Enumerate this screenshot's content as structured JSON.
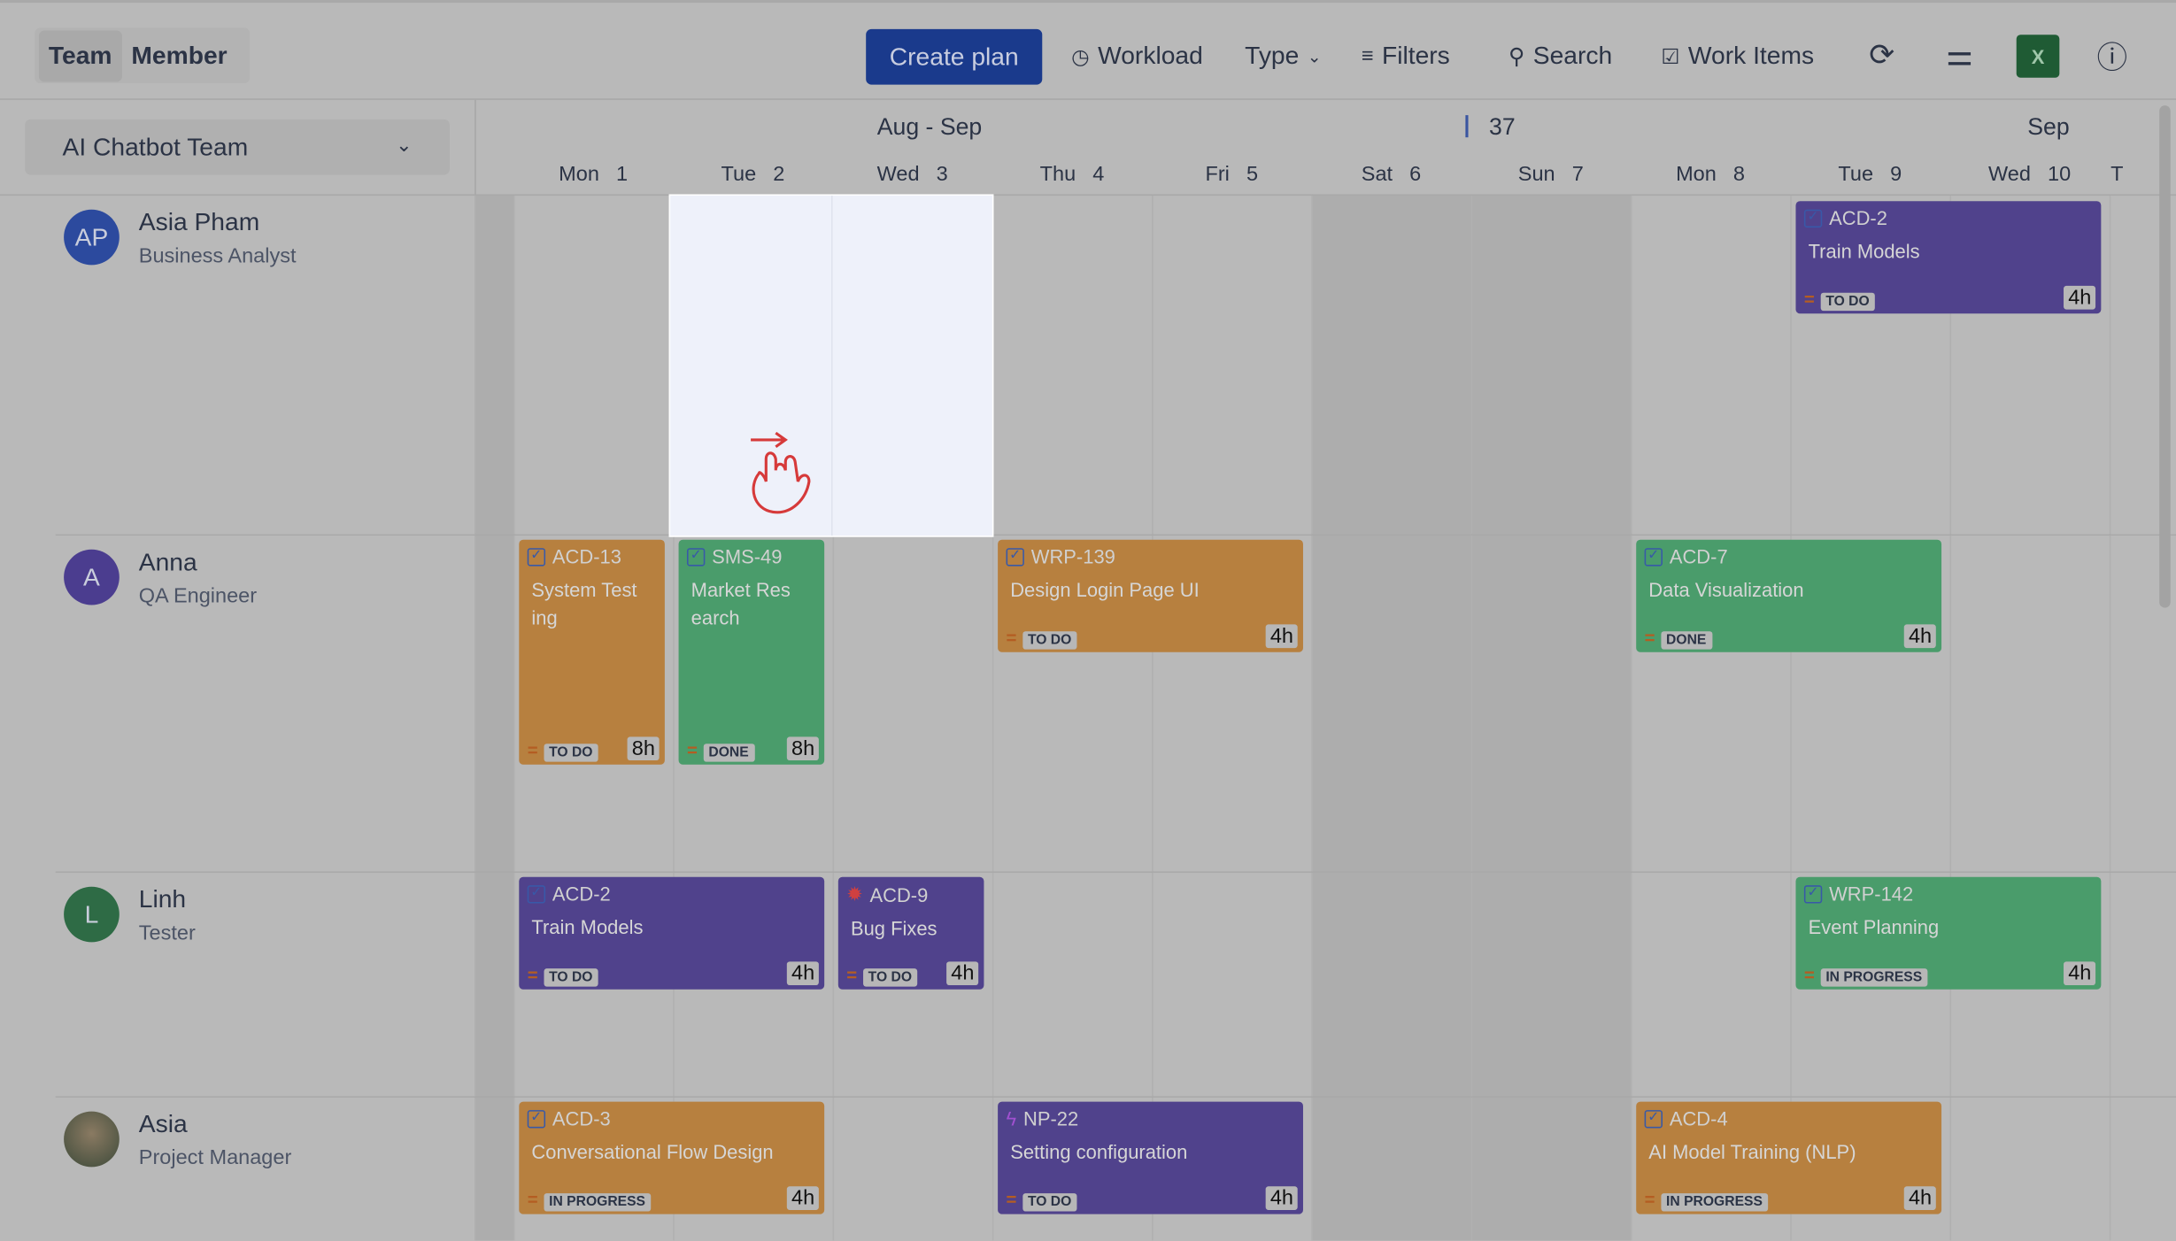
{
  "toolbar": {
    "view_toggle": [
      "Team",
      "Member"
    ],
    "active_view": "Team",
    "create_plan": "Create plan",
    "workload": "Workload",
    "type": "Type",
    "filters": "Filters",
    "search": "Search",
    "work_items": "Work Items",
    "excel_label": "X"
  },
  "team_selector": {
    "value": "AI Chatbot Team"
  },
  "calendar": {
    "month_left": "Aug - Sep",
    "week_number": "37",
    "month_right": "Sep",
    "days": [
      "Mon  1",
      "Tue  2",
      "Wed  3",
      "Thu  4",
      "Fri  5",
      "Sat  6",
      "Sun  7",
      "Mon  8",
      "Tue  9",
      "Wed  10",
      "T"
    ],
    "weekend_days": [
      "Sat  6",
      "Sun  7"
    ]
  },
  "members": [
    {
      "initials": "AP",
      "name": "Asia Pham",
      "role": "Business Analyst",
      "color": "#2c4a9e"
    },
    {
      "initials": "A",
      "name": "Anna",
      "role": "QA Engineer",
      "color": "#4b3d8f"
    },
    {
      "initials": "L",
      "name": "Linh",
      "role": "Tester",
      "color": "#2e6b45"
    },
    {
      "initials": "",
      "name": "Asia",
      "role": "Project Manager",
      "color": "#4a5a48"
    }
  ],
  "colors": {
    "orange": "#b7803f",
    "green": "#4a9c6b",
    "purple": "#50428c"
  },
  "cards": [
    {
      "member": 0,
      "start_day": 8,
      "days": 2,
      "key": "ACD-2",
      "title": "Train Models",
      "status": "TO DO",
      "hours": "4h",
      "color": "purple",
      "icon": "checkbox-icon"
    },
    {
      "member": 1,
      "start_day": 0,
      "days": 1,
      "key": "ACD-13",
      "title": "System Test ing",
      "status": "TO DO",
      "hours": "8h",
      "color": "orange",
      "icon": "checkbox-icon"
    },
    {
      "member": 1,
      "start_day": 1,
      "days": 1,
      "key": "SMS-49",
      "title": "Market Res earch",
      "status": "DONE",
      "hours": "8h",
      "color": "green",
      "icon": "checkbox-icon"
    },
    {
      "member": 1,
      "start_day": 3,
      "days": 2,
      "key": "WRP-139",
      "title": "Design Login Page UI",
      "status": "TO DO",
      "hours": "4h",
      "color": "orange",
      "icon": "checkbox-icon"
    },
    {
      "member": 1,
      "start_day": 7,
      "days": 2,
      "key": "ACD-7",
      "title": "Data Visualization",
      "status": "DONE",
      "hours": "4h",
      "color": "green",
      "icon": "checkbox-icon"
    },
    {
      "member": 2,
      "start_day": 0,
      "days": 2,
      "key": "ACD-2",
      "title": "Train Models",
      "status": "TO DO",
      "hours": "4h",
      "color": "purple",
      "icon": "checkbox-icon"
    },
    {
      "member": 2,
      "start_day": 2,
      "days": 1,
      "key": "ACD-9",
      "title": "Bug Fixes",
      "status": "TO DO",
      "hours": "4h",
      "color": "purple",
      "icon": "bug-icon"
    },
    {
      "member": 2,
      "start_day": 8,
      "days": 2,
      "key": "WRP-142",
      "title": "Event Planning",
      "status": "IN PROGRESS",
      "hours": "4h",
      "color": "green",
      "icon": "checkbox-icon"
    },
    {
      "member": 3,
      "start_day": 0,
      "days": 2,
      "key": "ACD-3",
      "title": "Conversational Flow Design",
      "status": "IN PROGRESS",
      "hours": "4h",
      "color": "orange",
      "icon": "checkbox-icon"
    },
    {
      "member": 3,
      "start_day": 3,
      "days": 2,
      "key": "NP-22",
      "title": "Setting configuration",
      "status": "TO DO",
      "hours": "4h",
      "color": "purple",
      "icon": "lightning-icon"
    },
    {
      "member": 3,
      "start_day": 7,
      "days": 2,
      "key": "ACD-4",
      "title": "AI Model Training (NLP)",
      "status": "IN PROGRESS",
      "hours": "4h",
      "color": "orange",
      "icon": "checkbox-icon"
    }
  ]
}
